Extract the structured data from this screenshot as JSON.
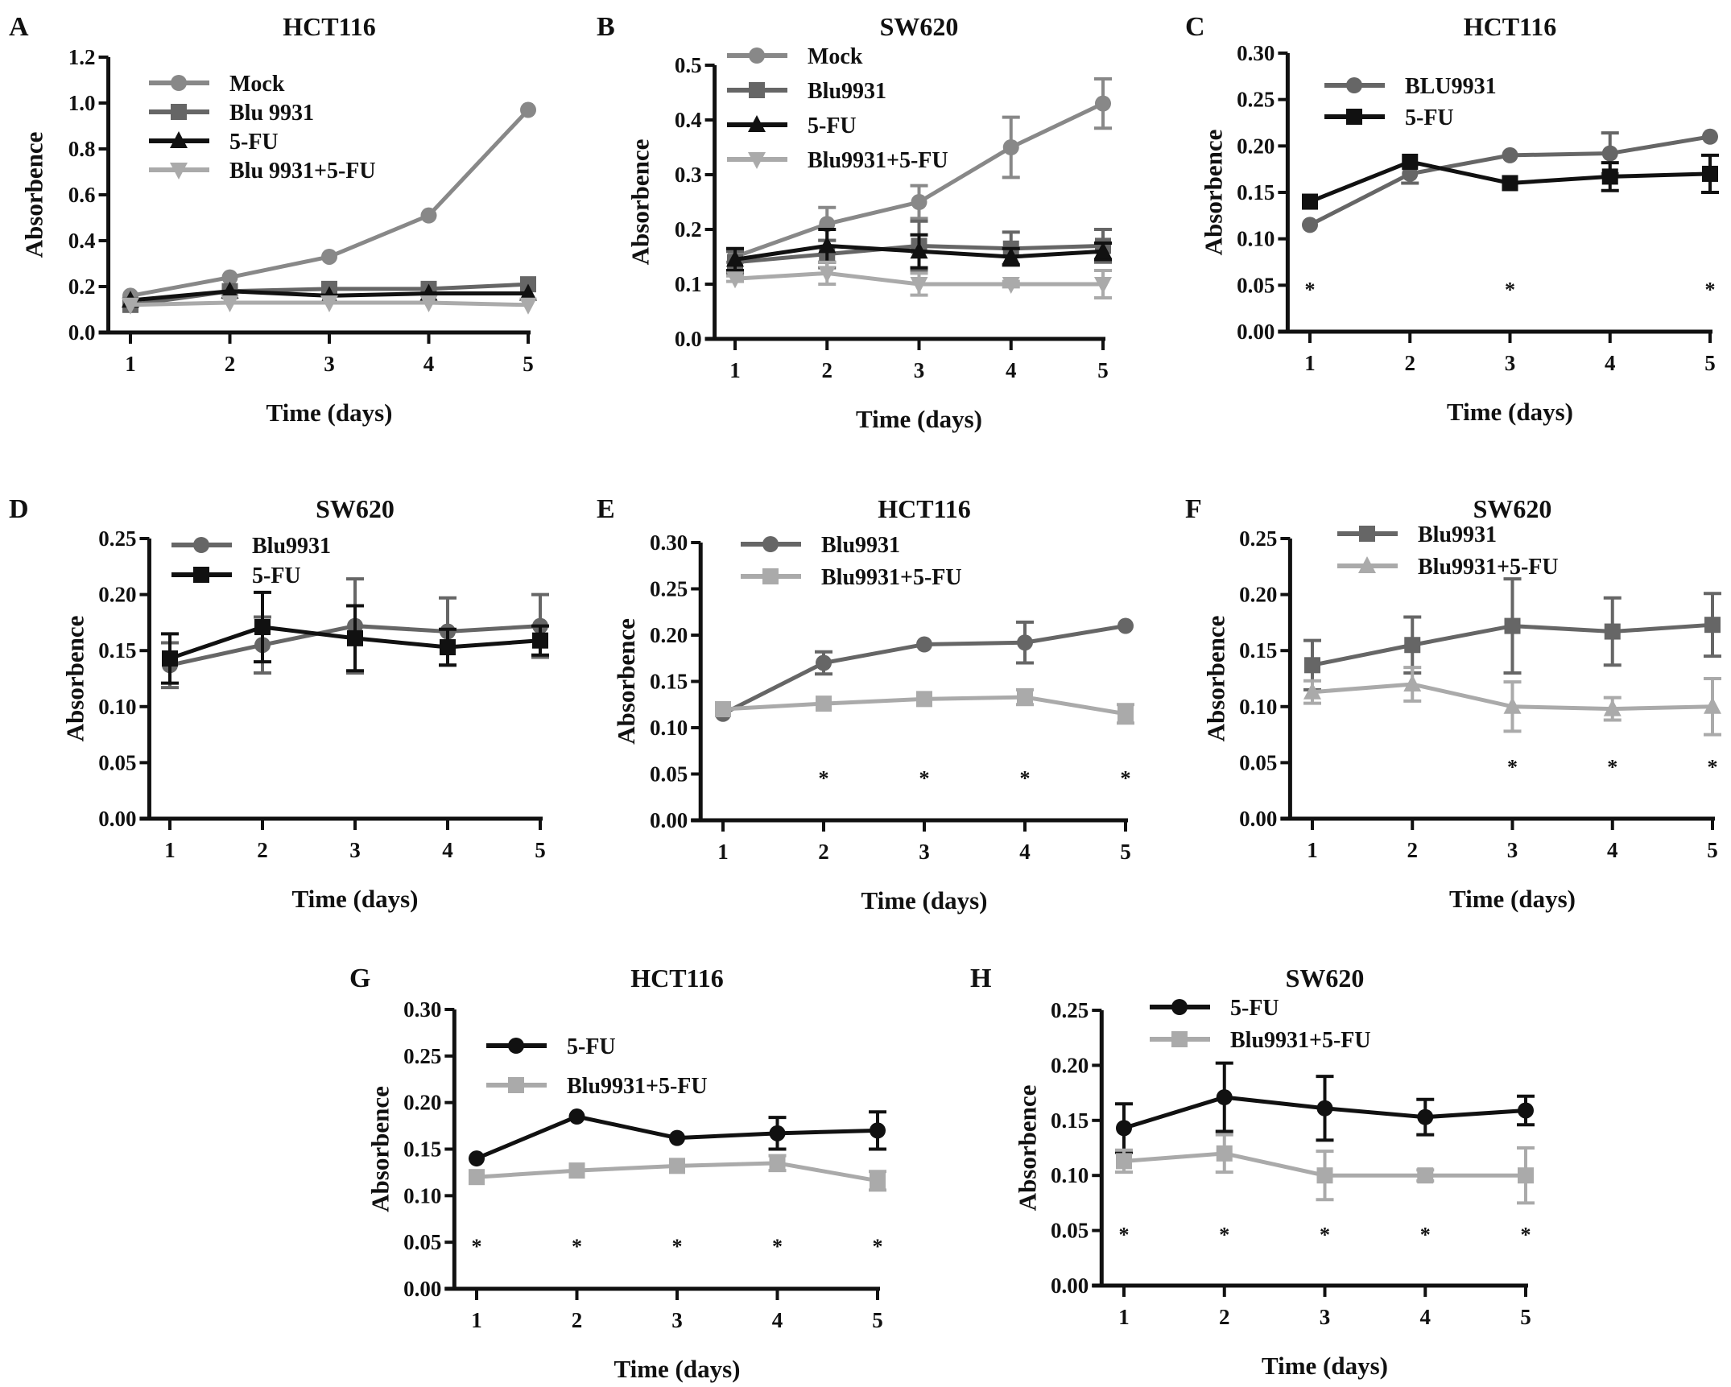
{
  "chart_data": [
    {
      "type": "line",
      "letter": "A",
      "title": "HCT116",
      "xlabel": "Time (days)",
      "ylabel": "Absorbence",
      "x": [
        1,
        2,
        3,
        4,
        5
      ],
      "xticks": [
        "1",
        "2",
        "3",
        "4",
        "5"
      ],
      "ylim": [
        0,
        1.2
      ],
      "yticks": [
        "0.0",
        "0.2",
        "0.4",
        "0.6",
        "0.8",
        "1.0",
        "1.2"
      ],
      "series": [
        {
          "name": "Mock",
          "color": "#888888",
          "marker": "circle",
          "values": [
            0.16,
            0.24,
            0.33,
            0.51,
            0.97
          ],
          "errors": [
            0,
            0,
            0,
            0,
            0
          ]
        },
        {
          "name": "Blu 9931",
          "color": "#666666",
          "marker": "square",
          "values": [
            0.12,
            0.18,
            0.19,
            0.19,
            0.21
          ],
          "errors": [
            0,
            0,
            0,
            0,
            0
          ]
        },
        {
          "name": "5-FU",
          "color": "#111111",
          "marker": "triangle",
          "values": [
            0.14,
            0.18,
            0.16,
            0.17,
            0.17
          ],
          "errors": [
            0,
            0,
            0,
            0,
            0
          ]
        },
        {
          "name": "Blu 9931+5-FU",
          "color": "#aaaaaa",
          "marker": "triangle-down",
          "values": [
            0.12,
            0.13,
            0.13,
            0.13,
            0.12
          ],
          "errors": [
            0,
            0,
            0,
            0,
            0
          ]
        }
      ],
      "significance": {
        "label": "*",
        "days": []
      }
    },
    {
      "type": "line",
      "letter": "B",
      "title": "SW620",
      "xlabel": "Time (days)",
      "ylabel": "Absorbence",
      "x": [
        1,
        2,
        3,
        4,
        5
      ],
      "xticks": [
        "1",
        "2",
        "3",
        "4",
        "5"
      ],
      "ylim": [
        0,
        0.5
      ],
      "yticks": [
        "0.0",
        "0.1",
        "0.2",
        "0.3",
        "0.4",
        "0.5"
      ],
      "series": [
        {
          "name": "Mock",
          "color": "#888888",
          "marker": "circle",
          "values": [
            0.15,
            0.21,
            0.25,
            0.35,
            0.43
          ],
          "errors": [
            0.01,
            0.03,
            0.03,
            0.055,
            0.045
          ]
        },
        {
          "name": "Blu9931",
          "color": "#666666",
          "marker": "square",
          "values": [
            0.14,
            0.155,
            0.17,
            0.165,
            0.17
          ],
          "errors": [
            0.02,
            0.025,
            0.045,
            0.03,
            0.03
          ]
        },
        {
          "name": "5-FU",
          "color": "#111111",
          "marker": "triangle",
          "values": [
            0.145,
            0.17,
            0.16,
            0.15,
            0.16
          ],
          "errors": [
            0.02,
            0.03,
            0.03,
            0.015,
            0.015
          ]
        },
        {
          "name": "Blu9931+5-FU",
          "color": "#aaaaaa",
          "marker": "triangle-down",
          "values": [
            0.11,
            0.12,
            0.1,
            0.1,
            0.1
          ],
          "errors": [
            0.005,
            0.02,
            0.02,
            0.005,
            0.025
          ]
        }
      ],
      "significance": {
        "label": "*",
        "days": []
      }
    },
    {
      "type": "line",
      "letter": "C",
      "title": "HCT116",
      "xlabel": "Time (days)",
      "ylabel": "Absorbence",
      "x": [
        1,
        2,
        3,
        4,
        5
      ],
      "xticks": [
        "1",
        "2",
        "3",
        "4",
        "5"
      ],
      "ylim": [
        0,
        0.3
      ],
      "yticks": [
        "0.00",
        "0.05",
        "0.10",
        "0.15",
        "0.20",
        "0.25",
        "0.30"
      ],
      "series": [
        {
          "name": "BLU9931",
          "color": "#666666",
          "marker": "circle",
          "values": [
            0.115,
            0.17,
            0.19,
            0.192,
            0.21
          ],
          "errors": [
            0,
            0.01,
            0,
            0.022,
            0
          ]
        },
        {
          "name": "5-FU",
          "color": "#111111",
          "marker": "square",
          "values": [
            0.14,
            0.183,
            0.16,
            0.167,
            0.17
          ],
          "errors": [
            0,
            0,
            0,
            0.015,
            0.02
          ]
        }
      ],
      "significance": {
        "label": "*",
        "days": [
          1,
          3,
          5
        ]
      }
    },
    {
      "type": "line",
      "letter": "D",
      "title": "SW620",
      "xlabel": "Time (days)",
      "ylabel": "Absorbence",
      "x": [
        1,
        2,
        3,
        4,
        5
      ],
      "xticks": [
        "1",
        "2",
        "3",
        "4",
        "5"
      ],
      "ylim": [
        0,
        0.25
      ],
      "yticks": [
        "0.00",
        "0.05",
        "0.10",
        "0.15",
        "0.20",
        "0.25"
      ],
      "series": [
        {
          "name": "Blu9931",
          "color": "#666666",
          "marker": "circle",
          "values": [
            0.137,
            0.155,
            0.172,
            0.167,
            0.172
          ],
          "errors": [
            0.02,
            0.025,
            0.042,
            0.03,
            0.028
          ]
        },
        {
          "name": "5-FU",
          "color": "#111111",
          "marker": "square",
          "values": [
            0.143,
            0.171,
            0.161,
            0.153,
            0.159
          ],
          "errors": [
            0.022,
            0.031,
            0.029,
            0.016,
            0.013
          ]
        }
      ],
      "significance": {
        "label": "*",
        "days": []
      }
    },
    {
      "type": "line",
      "letter": "E",
      "title": "HCT116",
      "xlabel": "Time (days)",
      "ylabel": "Absorbence",
      "x": [
        1,
        2,
        3,
        4,
        5
      ],
      "xticks": [
        "1",
        "2",
        "3",
        "4",
        "5"
      ],
      "ylim": [
        0,
        0.3
      ],
      "yticks": [
        "0.00",
        "0.05",
        "0.10",
        "0.15",
        "0.20",
        "0.25",
        "0.30"
      ],
      "series": [
        {
          "name": "Blu9931",
          "color": "#666666",
          "marker": "circle",
          "values": [
            0.115,
            0.17,
            0.19,
            0.192,
            0.21
          ],
          "errors": [
            0,
            0.012,
            0,
            0.022,
            0
          ]
        },
        {
          "name": "Blu9931+5-FU",
          "color": "#aaaaaa",
          "marker": "square",
          "values": [
            0.12,
            0.126,
            0.131,
            0.133,
            0.115
          ],
          "errors": [
            0,
            0,
            0,
            0.008,
            0.01
          ]
        }
      ],
      "significance": {
        "label": "*",
        "days": [
          2,
          3,
          4,
          5
        ]
      }
    },
    {
      "type": "line",
      "letter": "F",
      "title": "SW620",
      "xlabel": "Time (days)",
      "ylabel": "Absorbence",
      "x": [
        1,
        2,
        3,
        4,
        5
      ],
      "xticks": [
        "1",
        "2",
        "3",
        "4",
        "5"
      ],
      "ylim": [
        0,
        0.25
      ],
      "yticks": [
        "0.00",
        "0.05",
        "0.10",
        "0.15",
        "0.20",
        "0.25"
      ],
      "series": [
        {
          "name": "Blu9931",
          "color": "#666666",
          "marker": "square",
          "values": [
            0.137,
            0.155,
            0.172,
            0.167,
            0.173
          ],
          "errors": [
            0.022,
            0.025,
            0.042,
            0.03,
            0.028
          ]
        },
        {
          "name": "Blu9931+5-FU",
          "color": "#aaaaaa",
          "marker": "triangle",
          "values": [
            0.113,
            0.12,
            0.1,
            0.098,
            0.1
          ],
          "errors": [
            0.01,
            0.015,
            0.022,
            0.01,
            0.025
          ]
        }
      ],
      "significance": {
        "label": "*",
        "days": [
          3,
          4,
          5
        ]
      }
    },
    {
      "type": "line",
      "letter": "G",
      "title": "HCT116",
      "xlabel": "Time (days)",
      "ylabel": "Absorbence",
      "x": [
        1,
        2,
        3,
        4,
        5
      ],
      "xticks": [
        "1",
        "2",
        "3",
        "4",
        "5"
      ],
      "ylim": [
        0,
        0.3
      ],
      "yticks": [
        "0.00",
        "0.05",
        "0.10",
        "0.15",
        "0.20",
        "0.25",
        "0.30"
      ],
      "series": [
        {
          "name": "5-FU",
          "color": "#111111",
          "marker": "circle",
          "values": [
            0.14,
            0.185,
            0.162,
            0.167,
            0.17
          ],
          "errors": [
            0,
            0,
            0,
            0.017,
            0.02
          ]
        },
        {
          "name": "Blu9931+5-FU",
          "color": "#aaaaaa",
          "marker": "square",
          "values": [
            0.12,
            0.127,
            0.132,
            0.135,
            0.116
          ],
          "errors": [
            0,
            0,
            0,
            0.008,
            0.01
          ]
        }
      ],
      "significance": {
        "label": "*",
        "days": [
          1,
          2,
          3,
          4,
          5
        ]
      }
    },
    {
      "type": "line",
      "letter": "H",
      "title": "SW620",
      "xlabel": "Time (days)",
      "ylabel": "Absorbence",
      "x": [
        1,
        2,
        3,
        4,
        5
      ],
      "xticks": [
        "1",
        "2",
        "3",
        "4",
        "5"
      ],
      "ylim": [
        0,
        0.25
      ],
      "yticks": [
        "0.00",
        "0.05",
        "0.10",
        "0.15",
        "0.20",
        "0.25"
      ],
      "series": [
        {
          "name": "5-FU",
          "color": "#111111",
          "marker": "circle",
          "values": [
            0.143,
            0.171,
            0.161,
            0.153,
            0.159
          ],
          "errors": [
            0.022,
            0.031,
            0.029,
            0.016,
            0.013
          ]
        },
        {
          "name": "Blu9931+5-FU",
          "color": "#aaaaaa",
          "marker": "square",
          "values": [
            0.113,
            0.12,
            0.1,
            0.1,
            0.1
          ],
          "errors": [
            0.01,
            0.017,
            0.022,
            0.005,
            0.025
          ]
        }
      ],
      "significance": {
        "label": "*",
        "days": [
          1,
          2,
          3,
          4,
          5
        ]
      }
    }
  ]
}
